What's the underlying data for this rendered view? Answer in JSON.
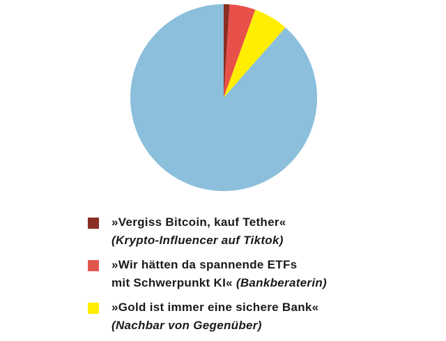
{
  "chart_data": {
    "type": "pie",
    "title": "",
    "slices": [
      {
        "label": "»Vergiss Bitcoin, kauf Tether«",
        "source": "(Krypto-Influencer auf Tiktok)",
        "value": 1,
        "color": "#8b2e24"
      },
      {
        "label": "»Wir hätten da spannende ETFs mit Schwerpunkt KI«",
        "source": "(Bankberaterin)",
        "value": 4.5,
        "color": "#e8504a"
      },
      {
        "label": "»Gold ist immer eine sichere Bank«",
        "source": "(Nachbar von Gegenüber)",
        "value": 6,
        "color": "#ffee00"
      },
      {
        "label": "",
        "source": "",
        "value": 88.5,
        "color": "#8bbfdc"
      }
    ],
    "legend_placement": "bottom"
  },
  "legend": {
    "items": [
      {
        "quote": "»Vergiss Bitcoin, kauf Tether«",
        "source": "(Krypto-Influencer auf Tiktok)",
        "color": "#8b2e24"
      },
      {
        "quote_line1": "»Wir hätten da spannende ETFs",
        "quote_line2": "mit Schwerpunkt KI«",
        "source": "(Bankberaterin)",
        "color": "#e0574e"
      },
      {
        "quote": "»Gold ist immer eine sichere Bank«",
        "source": "(Nachbar von Gegenüber)",
        "color": "#ffee00"
      }
    ]
  }
}
